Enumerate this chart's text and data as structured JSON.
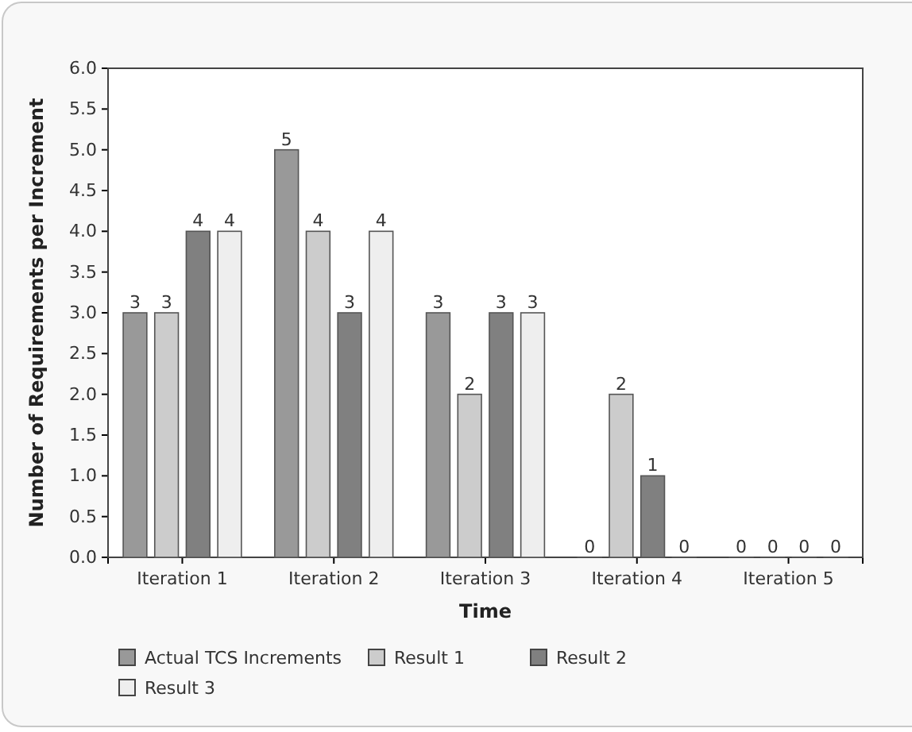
{
  "chart_data": {
    "type": "bar",
    "xlabel": "Time",
    "ylabel": "Number of Requirements per Increment",
    "categories": [
      "Iteration 1",
      "Iteration 2",
      "Iteration 3",
      "Iteration 4",
      "Iteration 5"
    ],
    "series": [
      {
        "name": "Actual TCS Increments",
        "color": "#999999",
        "values": [
          3,
          5,
          3,
          0,
          0
        ]
      },
      {
        "name": "Result 1",
        "color": "#cccccc",
        "values": [
          3,
          4,
          2,
          2,
          0
        ]
      },
      {
        "name": "Result 2",
        "color": "#808080",
        "values": [
          4,
          3,
          3,
          1,
          0
        ]
      },
      {
        "name": "Result 3",
        "color": "#eeeeee",
        "values": [
          4,
          4,
          3,
          0,
          0
        ]
      }
    ],
    "ylim": [
      0,
      6
    ],
    "yticks": [
      {
        "value": 0,
        "label": "0.0"
      },
      {
        "value": 0.5,
        "label": "0.5"
      },
      {
        "value": 1,
        "label": "1.0"
      },
      {
        "value": 1.5,
        "label": "1.5"
      },
      {
        "value": 2,
        "label": "2.0"
      },
      {
        "value": 2.5,
        "label": "2.5"
      },
      {
        "value": 3,
        "label": "3.0"
      },
      {
        "value": 3.5,
        "label": "3.5"
      },
      {
        "value": 4,
        "label": "4.0"
      },
      {
        "value": 4.5,
        "label": "4.5"
      },
      {
        "value": 5,
        "label": "5.0"
      },
      {
        "value": 5.5,
        "label": "5.5"
      },
      {
        "value": 6,
        "label": "6.0"
      }
    ],
    "data_labels": true,
    "legend": "bottom"
  }
}
